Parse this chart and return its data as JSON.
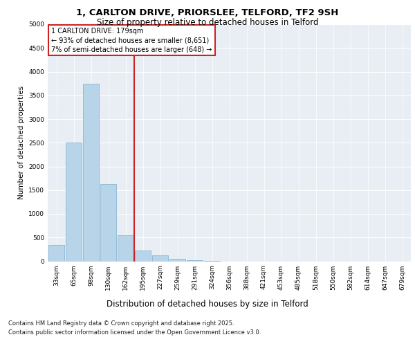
{
  "title_line1": "1, CARLTON DRIVE, PRIORSLEE, TELFORD, TF2 9SH",
  "title_line2": "Size of property relative to detached houses in Telford",
  "xlabel": "Distribution of detached houses by size in Telford",
  "ylabel": "Number of detached properties",
  "categories": [
    "33sqm",
    "65sqm",
    "98sqm",
    "130sqm",
    "162sqm",
    "195sqm",
    "227sqm",
    "259sqm",
    "291sqm",
    "324sqm",
    "356sqm",
    "388sqm",
    "421sqm",
    "453sqm",
    "485sqm",
    "518sqm",
    "550sqm",
    "582sqm",
    "614sqm",
    "647sqm",
    "679sqm"
  ],
  "values": [
    350,
    2500,
    3750,
    1625,
    550,
    225,
    125,
    50,
    15,
    3,
    0,
    0,
    0,
    0,
    0,
    0,
    0,
    0,
    0,
    0,
    0
  ],
  "bar_color": "#b8d4e8",
  "bar_edge_color": "#7bafd4",
  "ylim": [
    0,
    5000
  ],
  "yticks": [
    0,
    500,
    1000,
    1500,
    2000,
    2500,
    3000,
    3500,
    4000,
    4500,
    5000
  ],
  "property_label": "1 CARLTON DRIVE: 179sqm",
  "annotation_line1": "← 93% of detached houses are smaller (8,651)",
  "annotation_line2": "7% of semi-detached houses are larger (648) →",
  "vline_color": "#cc2222",
  "annotation_box_edgecolor": "#cc2222",
  "background_color": "#e8eef4",
  "footer_line1": "Contains HM Land Registry data © Crown copyright and database right 2025.",
  "footer_line2": "Contains public sector information licensed under the Open Government Licence v3.0.",
  "title1_fontsize": 9.5,
  "title2_fontsize": 8.5,
  "ylabel_fontsize": 7.5,
  "xlabel_fontsize": 8.5,
  "tick_fontsize": 6.5,
  "footer_fontsize": 6.0,
  "annot_fontsize": 7.0
}
